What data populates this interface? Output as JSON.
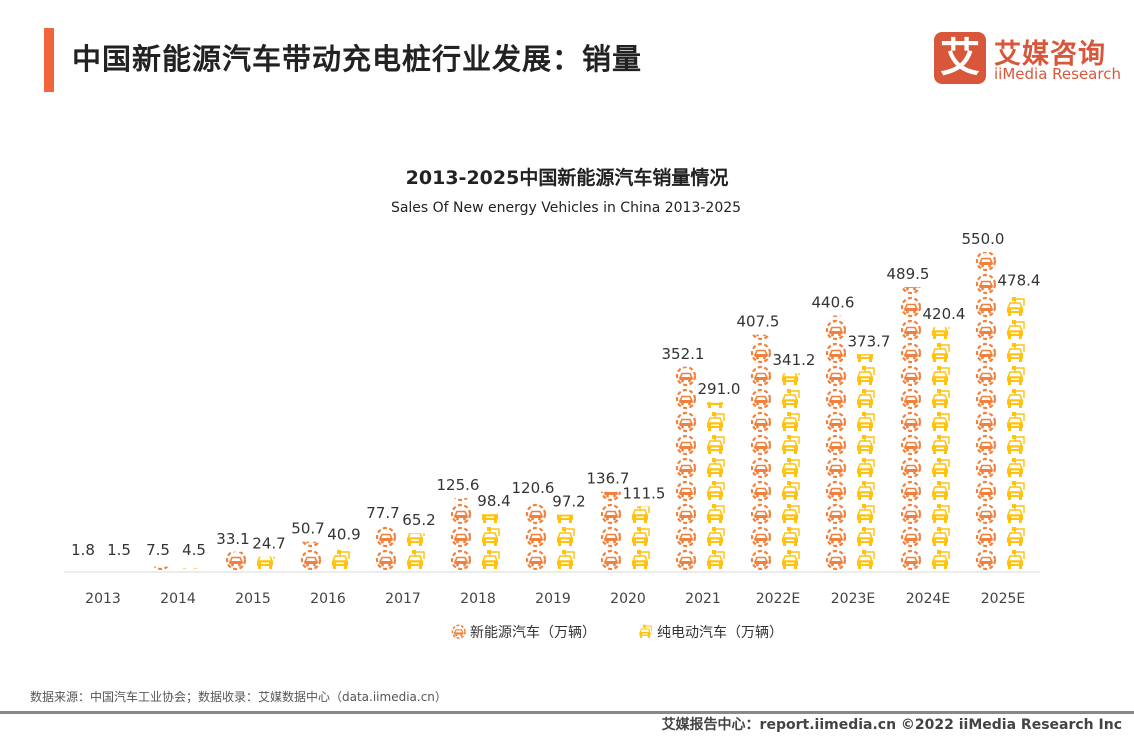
{
  "header": {
    "title": "中国新能源汽车带动充电桩行业发展：销量",
    "logo_cn": "艾媒咨询",
    "logo_en": "iiMedia Research",
    "logo_mark": "艾"
  },
  "colors": {
    "accent": "#f0663a",
    "nev": "#f0803c",
    "bev": "#ffc20e",
    "logo": "#d8573b"
  },
  "chart_data": {
    "type": "bar",
    "style": "pictogram",
    "title": "2013-2025中国新能源汽车销量情况",
    "subtitle": "Sales Of New energy Vehicles in China 2013-2025",
    "categories": [
      "2013",
      "2014",
      "2015",
      "2016",
      "2017",
      "2018",
      "2019",
      "2020",
      "2021",
      "2022E",
      "2023E",
      "2024E",
      "2025E"
    ],
    "series": [
      {
        "name": "新能源汽车（万辆）",
        "icon": "car-in-circle-icon",
        "values": [
          1.8,
          7.5,
          33.1,
          50.7,
          77.7,
          125.6,
          120.6,
          136.7,
          352.1,
          407.5,
          440.6,
          489.5,
          550.0
        ]
      },
      {
        "name": "纯电动汽车（万辆）",
        "icon": "electric-car-plug-icon",
        "values": [
          1.5,
          4.5,
          24.7,
          40.9,
          65.2,
          98.4,
          97.2,
          111.5,
          291.0,
          341.2,
          373.7,
          420.4,
          478.4
        ]
      }
    ],
    "ylim": [
      0,
      550
    ],
    "grid": false,
    "legend": "bottom"
  },
  "source": "数据来源：中国汽车工业协会；数据收录：艾媒数据中心（data.iimedia.cn）",
  "footer": "艾媒报告中心：report.iimedia.cn   ©2022  iiMedia Research  Inc"
}
